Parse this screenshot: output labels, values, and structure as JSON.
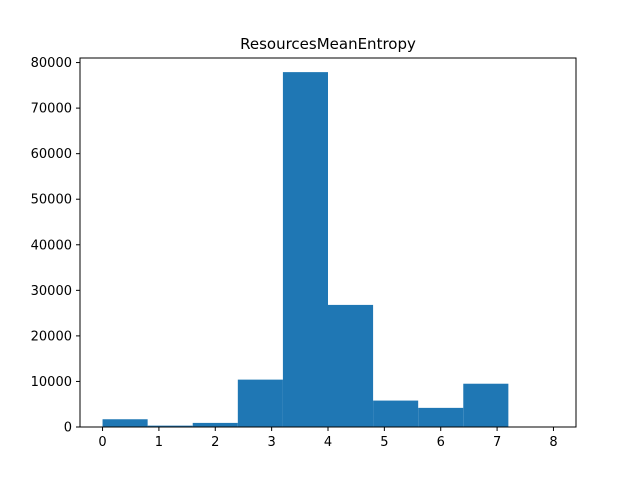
{
  "chart_data": {
    "type": "bar",
    "title": "ResourcesMeanEntropy",
    "xlabel": "",
    "ylabel": "",
    "xlim": [
      -0.4,
      8.4
    ],
    "ylim": [
      0,
      81000
    ],
    "xticks": [
      0,
      1,
      2,
      3,
      4,
      5,
      6,
      7,
      8
    ],
    "yticks": [
      0,
      10000,
      20000,
      30000,
      40000,
      50000,
      60000,
      70000,
      80000
    ],
    "bins": [
      {
        "start": 0.0,
        "end": 0.8,
        "count": 1700
      },
      {
        "start": 0.8,
        "end": 1.6,
        "count": 300
      },
      {
        "start": 1.6,
        "end": 2.4,
        "count": 900
      },
      {
        "start": 2.4,
        "end": 3.2,
        "count": 10400
      },
      {
        "start": 3.2,
        "end": 4.0,
        "count": 77900
      },
      {
        "start": 4.0,
        "end": 4.8,
        "count": 26800
      },
      {
        "start": 4.8,
        "end": 5.6,
        "count": 5800
      },
      {
        "start": 5.6,
        "end": 6.4,
        "count": 4200
      },
      {
        "start": 6.4,
        "end": 7.2,
        "count": 9500
      },
      {
        "start": 7.2,
        "end": 8.0,
        "count": 0
      }
    ],
    "grid": false,
    "color": "#1f77b4"
  }
}
